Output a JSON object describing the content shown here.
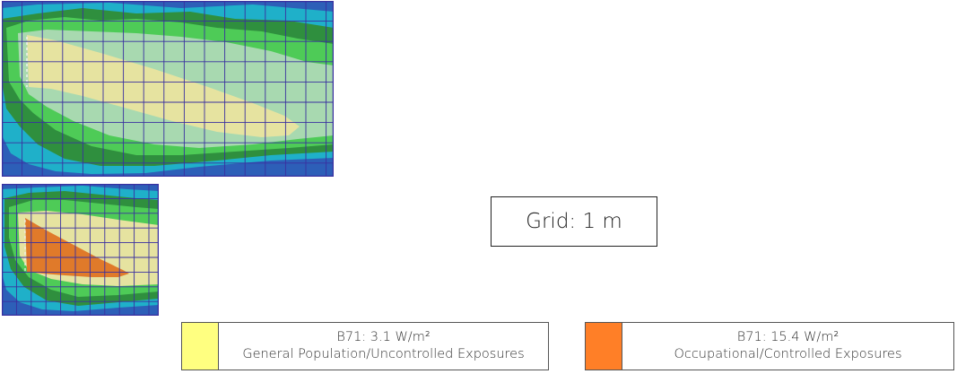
{
  "grid_label": "Grid: 1 m",
  "legend": [
    {
      "value": "B71: 3.1 W/m²",
      "category": "General Population/Uncontrolled Exposures",
      "color": "#ffff80"
    },
    {
      "value": "B71: 15.4 W/m²",
      "category": "Occupational/Controlled Exposures",
      "color": "#ff7f27"
    }
  ],
  "colors": {
    "outer_blue": "#2d5fb8",
    "cyan": "#1fb0c9",
    "dark_green": "#2f8f3e",
    "green": "#4ecb57",
    "light_green": "#a8d9b0",
    "pale_yellow": "#e6e3a0",
    "orange": "#e07a2a",
    "grid_line": "#3a30a0"
  }
}
